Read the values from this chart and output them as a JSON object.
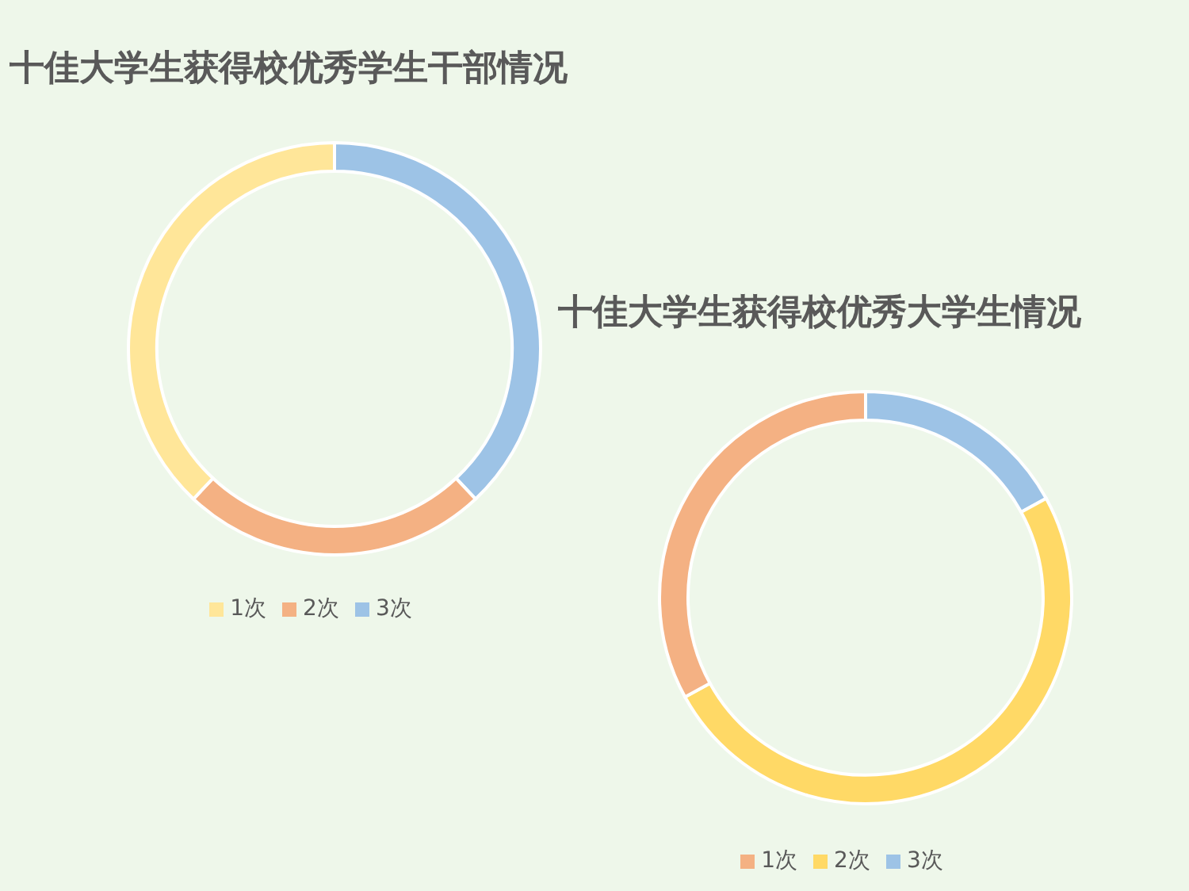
{
  "chart_data": [
    {
      "type": "donut",
      "title": "十佳大学生获得校优秀学生干部情况",
      "categories": [
        "3次",
        "2次",
        "1次"
      ],
      "values": [
        38,
        24,
        38
      ],
      "colors": [
        "#9dc3e6",
        "#f4b183",
        "#ffe699"
      ],
      "legend": "bottom"
    },
    {
      "type": "donut",
      "title": "十佳大学生获得校优秀大学生情况",
      "categories": [
        "3次",
        "2次",
        "1次"
      ],
      "values": [
        17,
        50,
        33
      ],
      "colors": [
        "#9dc3e6",
        "#ffd966",
        "#f4b183"
      ],
      "legend": "bottom"
    }
  ]
}
